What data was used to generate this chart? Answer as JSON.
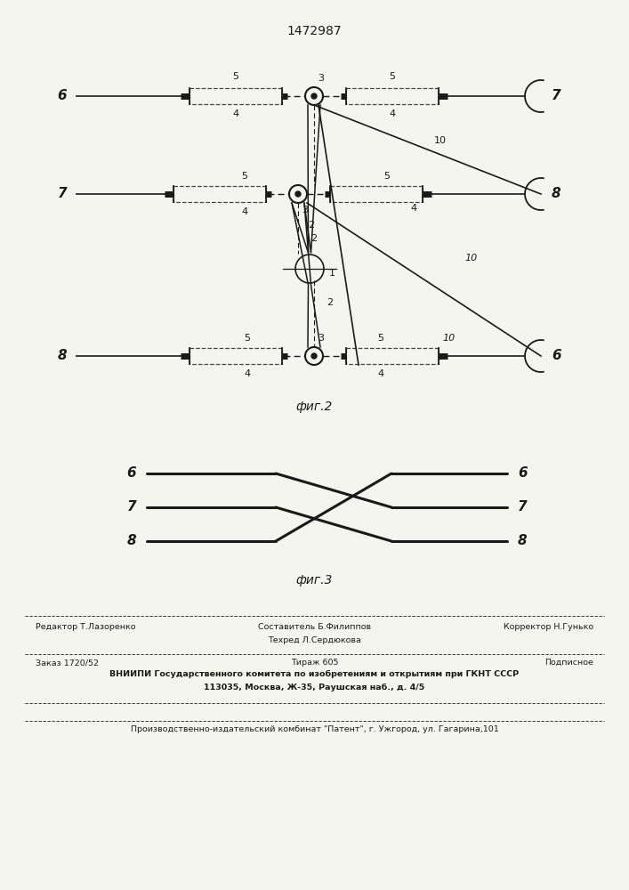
{
  "title": "1472987",
  "bg_color": "#f5f5f0",
  "line_color": "#1a1a1a",
  "dashed_color": "#444444",
  "fig2_label": "фиг.2",
  "fig3_label": "фиг.3",
  "footer": {
    "line1_left": "Редактор Т.Лазоренко",
    "line1_center": "Составитель Б.Филиппов",
    "line1_right": "Корректор Н.Гунько",
    "line2_center": "Техред Л.Сердюкова",
    "line3_left": "Заказ 1720/52",
    "line3_center": "Тираж 605",
    "line3_right": "Подписное",
    "line4": "ВНИИПИ Государственного комитета по изобретениям и открытиям при ГКНТ СССР",
    "line5": "113035, Москва, Ж-35, Раушская наб., д. 4/5",
    "line6": "Производственно-издательский комбинат \"Патент\", г. Ужгород, ул. Гагарина,101"
  }
}
